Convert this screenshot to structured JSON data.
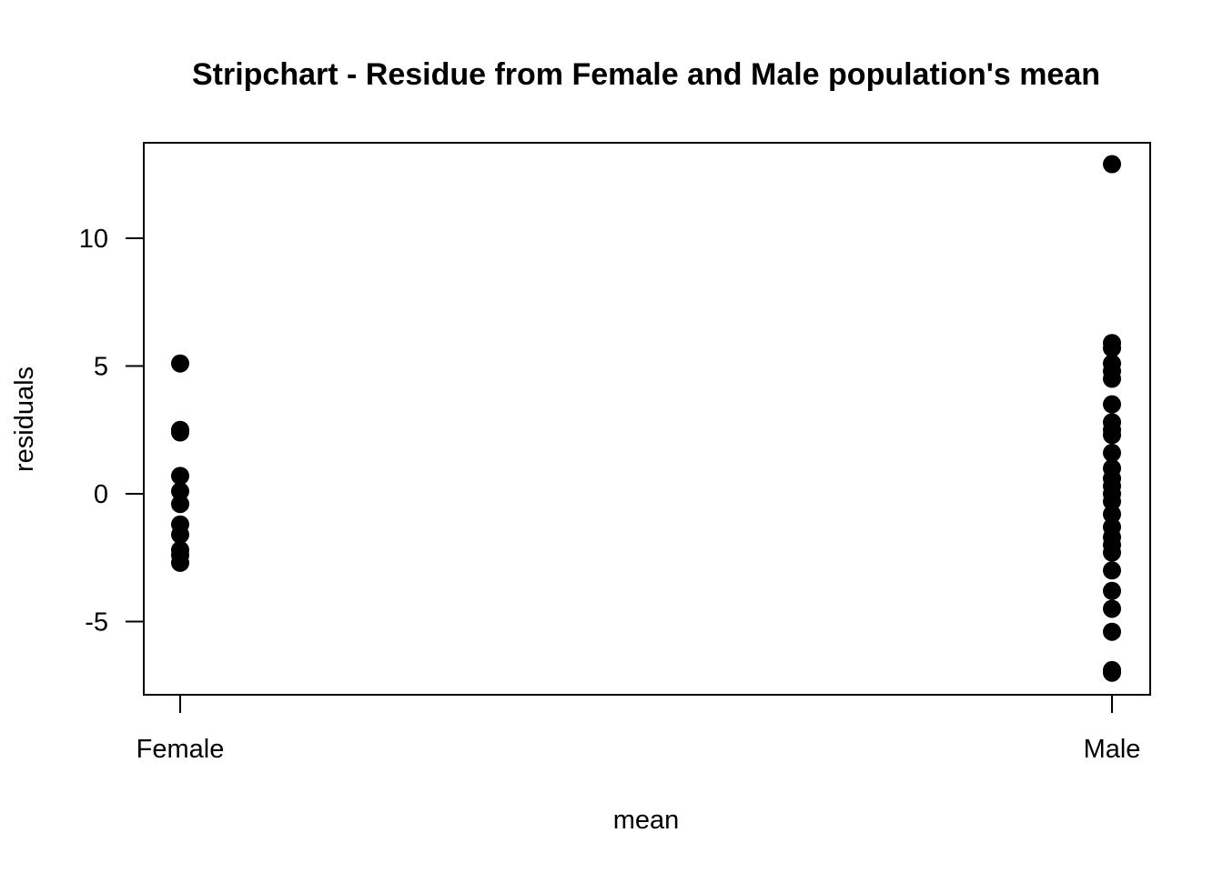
{
  "chart_data": {
    "type": "scatter",
    "title": "Stripchart - Residue from Female and Male population's mean",
    "xlabel": "mean",
    "ylabel": "residuals",
    "categories": [
      "Female",
      "Male"
    ],
    "ylim": [
      -7.8,
      13.8
    ],
    "yticks": [
      -5,
      0,
      5,
      10
    ],
    "grid": false,
    "legend": "none",
    "marker_color": "#000000",
    "series": [
      {
        "category": "Female",
        "values": [
          5.1,
          2.5,
          2.4,
          0.7,
          0.1,
          -0.4,
          -1.2,
          -1.6,
          -2.2,
          -2.4,
          -2.7
        ]
      },
      {
        "category": "Male",
        "values": [
          12.9,
          5.9,
          5.7,
          5.1,
          4.8,
          4.5,
          3.5,
          2.8,
          2.5,
          2.3,
          1.6,
          1.0,
          0.6,
          0.3,
          0.0,
          -0.3,
          -0.8,
          -1.3,
          -1.7,
          -2.0,
          -2.3,
          -3.0,
          -3.8,
          -4.5,
          -5.4,
          -6.9,
          -7.0
        ]
      }
    ]
  }
}
